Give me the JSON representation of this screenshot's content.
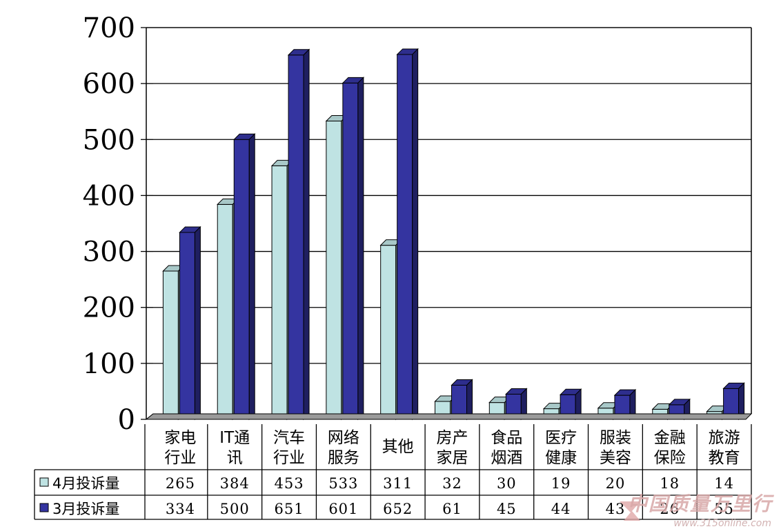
{
  "chart_data": {
    "type": "bar",
    "categories": [
      "家电\n行业",
      "IT通\n讯",
      "汽车\n行业",
      "网络\n服务",
      "其他",
      "房产\n家居",
      "食品\n烟酒",
      "医疗\n健康",
      "服装\n美容",
      "金融\n保险",
      "旅游\n教育"
    ],
    "series": [
      {
        "name": "4月投诉量",
        "values": [
          265,
          384,
          453,
          533,
          311,
          32,
          30,
          19,
          20,
          18,
          14
        ],
        "color": "#bfe3e3"
      },
      {
        "name": "3月投诉量",
        "values": [
          334,
          500,
          651,
          601,
          652,
          61,
          45,
          44,
          43,
          26,
          55
        ],
        "color": "#3434a0"
      }
    ],
    "yticks": [
      0,
      100,
      200,
      300,
      400,
      500,
      600,
      700
    ],
    "ylim": [
      0,
      700
    ],
    "grid": true,
    "data_table": true
  },
  "watermark": {
    "text": "中国质量万里行",
    "url": "www.315online.com"
  }
}
